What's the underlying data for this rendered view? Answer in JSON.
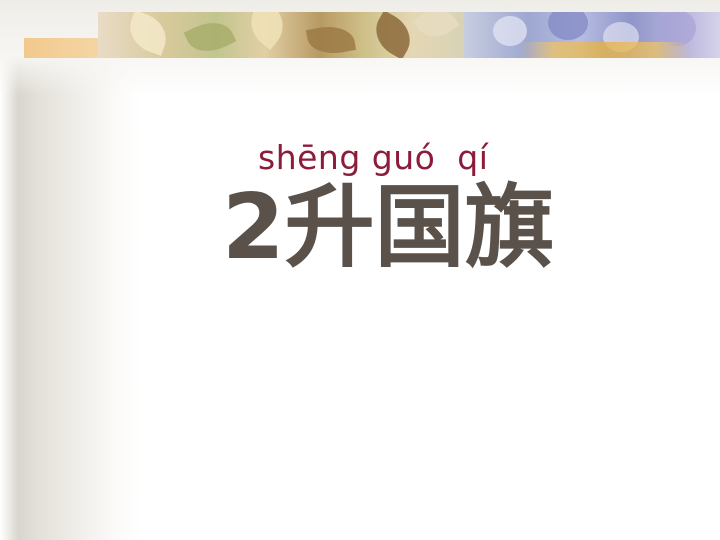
{
  "slide": {
    "pinyin": "shēng guó  qí",
    "title": "2升国旗"
  },
  "colors": {
    "pinyin": "#8b1c3a",
    "title": "#5a514b",
    "background": "#ffffff"
  }
}
